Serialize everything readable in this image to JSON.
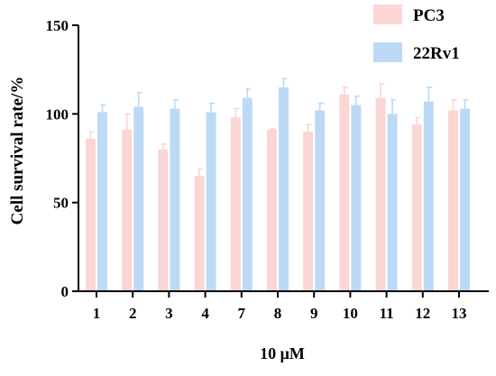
{
  "chart_data": {
    "type": "bar",
    "title": "",
    "xlabel": "10 μM",
    "ylabel": "Cell survival rate/%",
    "ylim": [
      0,
      150
    ],
    "yticks": [
      0,
      50,
      100,
      150
    ],
    "grid": false,
    "legend_position": "top-right",
    "categories": [
      "1",
      "2",
      "3",
      "4",
      "7",
      "8",
      "9",
      "10",
      "11",
      "12",
      "13"
    ],
    "series": [
      {
        "name": "PC3",
        "color": "#fcd5d5",
        "values": [
          86,
          91,
          80,
          65,
          98,
          91,
          90,
          111,
          109,
          94,
          102
        ],
        "errors": [
          4,
          9,
          3,
          4,
          5,
          0.5,
          4,
          4,
          8,
          4,
          6
        ]
      },
      {
        "name": "22Rv1",
        "color": "#bcdaf6",
        "values": [
          101,
          104,
          103,
          101,
          109,
          115,
          102,
          105,
          100,
          107,
          103
        ],
        "errors": [
          4,
          8,
          5,
          5,
          5,
          5,
          4,
          5,
          8,
          8,
          5
        ]
      }
    ]
  }
}
